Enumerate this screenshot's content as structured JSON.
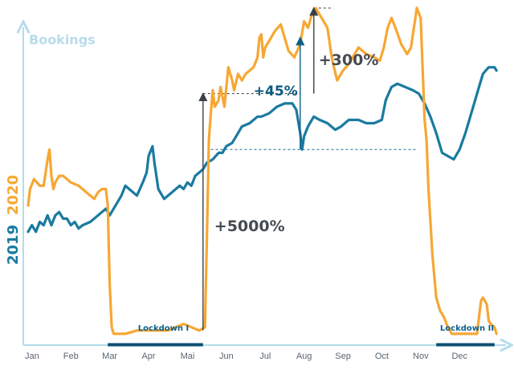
{
  "chart_data": {
    "type": "line",
    "title": "",
    "ylabel": "Bookings",
    "xlabel": "",
    "ylim": [
      0,
      100
    ],
    "xlim": [
      0,
      12.1
    ],
    "grid": false,
    "months": [
      "Jan",
      "Feb",
      "Mar",
      "Apr",
      "Mai",
      "Jun",
      "Jul",
      "Aug",
      "Sep",
      "Oct",
      "Nov",
      "Dec"
    ],
    "series": [
      {
        "name": "2019",
        "color": "#1a7aa0",
        "points": [
          [
            0.0,
            32
          ],
          [
            0.1,
            34
          ],
          [
            0.2,
            32
          ],
          [
            0.3,
            35
          ],
          [
            0.4,
            34
          ],
          [
            0.5,
            37
          ],
          [
            0.6,
            34
          ],
          [
            0.7,
            37
          ],
          [
            0.8,
            38
          ],
          [
            0.9,
            36
          ],
          [
            1.0,
            36
          ],
          [
            1.1,
            34
          ],
          [
            1.2,
            35
          ],
          [
            1.3,
            33
          ],
          [
            1.4,
            34
          ],
          [
            1.6,
            35
          ],
          [
            1.8,
            37
          ],
          [
            2.0,
            39
          ],
          [
            2.1,
            37
          ],
          [
            2.3,
            41
          ],
          [
            2.4,
            43
          ],
          [
            2.5,
            46
          ],
          [
            2.6,
            45
          ],
          [
            2.8,
            43
          ],
          [
            2.95,
            47
          ],
          [
            3.05,
            50
          ],
          [
            3.1,
            55
          ],
          [
            3.2,
            58
          ],
          [
            3.25,
            53
          ],
          [
            3.35,
            45
          ],
          [
            3.5,
            42
          ],
          [
            3.7,
            44
          ],
          [
            3.9,
            46
          ],
          [
            4.0,
            45
          ],
          [
            4.1,
            47
          ],
          [
            4.2,
            46
          ],
          [
            4.3,
            49
          ],
          [
            4.4,
            50
          ],
          [
            4.5,
            51
          ],
          [
            4.6,
            53
          ],
          [
            4.75,
            54
          ],
          [
            4.9,
            56
          ],
          [
            5.0,
            56
          ],
          [
            5.1,
            58
          ],
          [
            5.25,
            59
          ],
          [
            5.4,
            62
          ],
          [
            5.5,
            64
          ],
          [
            5.7,
            65
          ],
          [
            5.9,
            67
          ],
          [
            6.0,
            67
          ],
          [
            6.2,
            68
          ],
          [
            6.4,
            70
          ],
          [
            6.6,
            71
          ],
          [
            6.8,
            71
          ],
          [
            6.9,
            69
          ],
          [
            7.0,
            62
          ],
          [
            7.05,
            57
          ],
          [
            7.1,
            61
          ],
          [
            7.2,
            64
          ],
          [
            7.35,
            67
          ],
          [
            7.5,
            66
          ],
          [
            7.7,
            65
          ],
          [
            7.9,
            63
          ],
          [
            8.05,
            64
          ],
          [
            8.25,
            66
          ],
          [
            8.5,
            66
          ],
          [
            8.7,
            65
          ],
          [
            8.9,
            65
          ],
          [
            9.1,
            66
          ],
          [
            9.2,
            72
          ],
          [
            9.35,
            76
          ],
          [
            9.5,
            77
          ],
          [
            9.7,
            76
          ],
          [
            9.9,
            75
          ],
          [
            10.05,
            74
          ],
          [
            10.2,
            71
          ],
          [
            10.35,
            67
          ],
          [
            10.5,
            62
          ],
          [
            10.65,
            56
          ],
          [
            10.8,
            55
          ],
          [
            10.95,
            54
          ],
          [
            11.1,
            57
          ],
          [
            11.25,
            62
          ],
          [
            11.4,
            68
          ],
          [
            11.55,
            74
          ],
          [
            11.7,
            80
          ],
          [
            11.85,
            82
          ],
          [
            12.0,
            82
          ],
          [
            12.05,
            81
          ]
        ]
      },
      {
        "name": "2020",
        "color": "#f6a733",
        "points": [
          [
            0.0,
            40
          ],
          [
            0.05,
            45
          ],
          [
            0.15,
            48
          ],
          [
            0.3,
            46
          ],
          [
            0.4,
            46
          ],
          [
            0.45,
            50
          ],
          [
            0.5,
            54
          ],
          [
            0.55,
            57
          ],
          [
            0.6,
            49
          ],
          [
            0.65,
            45
          ],
          [
            0.7,
            47
          ],
          [
            0.8,
            49
          ],
          [
            0.9,
            49
          ],
          [
            1.0,
            48
          ],
          [
            1.1,
            47
          ],
          [
            1.3,
            46
          ],
          [
            1.5,
            44
          ],
          [
            1.6,
            43
          ],
          [
            1.7,
            42
          ],
          [
            1.8,
            44
          ],
          [
            1.9,
            45
          ],
          [
            2.0,
            45
          ],
          [
            2.05,
            40
          ],
          [
            2.1,
            16
          ],
          [
            2.15,
            3
          ],
          [
            2.2,
            1
          ],
          [
            2.5,
            1
          ],
          [
            2.8,
            2
          ],
          [
            3.0,
            2
          ],
          [
            3.3,
            2
          ],
          [
            3.6,
            2
          ],
          [
            3.8,
            3
          ],
          [
            4.0,
            4
          ],
          [
            4.2,
            3
          ],
          [
            4.4,
            2
          ],
          [
            4.55,
            3
          ],
          [
            4.6,
            30
          ],
          [
            4.65,
            60
          ],
          [
            4.7,
            68
          ],
          [
            4.75,
            75
          ],
          [
            4.8,
            70
          ],
          [
            4.9,
            72
          ],
          [
            4.95,
            76
          ],
          [
            5.05,
            70
          ],
          [
            5.15,
            82
          ],
          [
            5.25,
            78
          ],
          [
            5.3,
            75
          ],
          [
            5.4,
            80
          ],
          [
            5.5,
            78
          ],
          [
            5.6,
            80
          ],
          [
            5.7,
            81
          ],
          [
            5.8,
            82
          ],
          [
            5.9,
            85
          ],
          [
            5.95,
            91
          ],
          [
            6.0,
            92
          ],
          [
            6.05,
            85
          ],
          [
            6.1,
            88
          ],
          [
            6.2,
            90
          ],
          [
            6.35,
            93
          ],
          [
            6.5,
            95
          ],
          [
            6.6,
            91
          ],
          [
            6.7,
            87
          ],
          [
            6.85,
            85
          ],
          [
            7.0,
            89
          ],
          [
            7.1,
            96
          ],
          [
            7.2,
            94
          ],
          [
            7.3,
            98
          ],
          [
            7.4,
            100
          ],
          [
            7.55,
            97
          ],
          [
            7.7,
            94
          ],
          [
            7.8,
            86
          ],
          [
            7.85,
            83
          ],
          [
            7.95,
            78
          ],
          [
            8.1,
            81
          ],
          [
            8.25,
            83
          ],
          [
            8.5,
            88
          ],
          [
            8.7,
            86
          ],
          [
            8.9,
            85
          ],
          [
            9.05,
            84
          ],
          [
            9.15,
            88
          ],
          [
            9.25,
            94
          ],
          [
            9.35,
            97
          ],
          [
            9.45,
            94
          ],
          [
            9.6,
            89
          ],
          [
            9.75,
            86
          ],
          [
            9.85,
            88
          ],
          [
            9.95,
            96
          ],
          [
            10.0,
            100
          ],
          [
            10.1,
            97
          ],
          [
            10.2,
            66
          ],
          [
            10.25,
            60
          ],
          [
            10.3,
            45
          ],
          [
            10.4,
            25
          ],
          [
            10.5,
            12
          ],
          [
            10.6,
            8
          ],
          [
            10.7,
            6
          ],
          [
            10.8,
            3
          ],
          [
            10.9,
            1
          ],
          [
            11.0,
            1
          ],
          [
            11.2,
            1
          ],
          [
            11.4,
            1
          ],
          [
            11.55,
            1
          ],
          [
            11.6,
            6
          ],
          [
            11.65,
            11
          ],
          [
            11.7,
            12
          ],
          [
            11.8,
            10
          ],
          [
            11.85,
            5
          ],
          [
            11.9,
            4
          ],
          [
            12.0,
            3
          ],
          [
            12.05,
            1
          ]
        ]
      }
    ],
    "annotations": [
      {
        "text": "+5000%",
        "from": [
          4.5,
          2
        ],
        "to": [
          4.5,
          74
        ]
      },
      {
        "text": "+45%",
        "from": [
          7.0,
          57
        ],
        "to": [
          7.0,
          91
        ]
      },
      {
        "text": "+300%",
        "from": [
          7.35,
          74
        ],
        "to": [
          7.35,
          100
        ]
      }
    ],
    "periods": [
      {
        "label": "Lockdown I",
        "start": 2.05,
        "end": 4.5
      },
      {
        "label": "Lockdown II",
        "start": 10.5,
        "end": 12.0
      }
    ]
  }
}
